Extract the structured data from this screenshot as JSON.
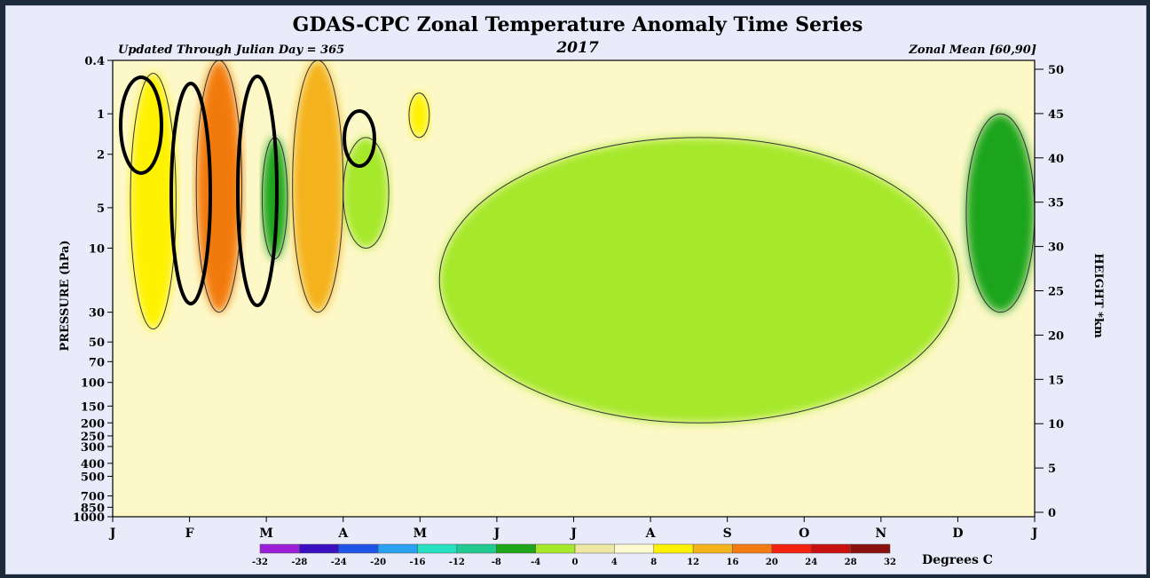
{
  "chart_data": {
    "type": "heatmap",
    "title": "GDAS-CPC Zonal Temperature Anomaly Time Series",
    "year": "2017",
    "left_note": "Updated Through Julian Day = 365",
    "right_note": "Zonal Mean [60,90]",
    "ylabel": "PRESSURE (hPa)",
    "y2label": "HEIGHT *km",
    "x_ticks": [
      "J",
      "F",
      "M",
      "A",
      "M",
      "J",
      "J",
      "A",
      "S",
      "O",
      "N",
      "D",
      "J"
    ],
    "x_day_range": [
      1,
      365
    ],
    "y_pressure_ticks": [
      "0.4",
      "1",
      "2",
      "5",
      "10",
      "30",
      "50",
      "70",
      "100",
      "150",
      "200",
      "250",
      "300",
      "400",
      "500",
      "700",
      "850",
      "1000"
    ],
    "y_pressure_range": [
      0.4,
      1000
    ],
    "y_scale": "log",
    "y_height_ticks": [
      "50",
      "45",
      "40",
      "35",
      "30",
      "25",
      "20",
      "15",
      "10",
      "5",
      "0"
    ],
    "colorbar": {
      "label": "Degrees C",
      "ticks": [
        "-32",
        "-28",
        "-24",
        "-20",
        "-16",
        "-12",
        "-8",
        "-4",
        "0",
        "4",
        "8",
        "12",
        "16",
        "20",
        "24",
        "28",
        "32"
      ],
      "colors": [
        "#9b1fd8",
        "#3a10c0",
        "#1f55e6",
        "#2aa0f0",
        "#27e0c0",
        "#22c990",
        "#1ea51a",
        "#a6e82c",
        "#ece8a4",
        "#fffbd0",
        "#fff200",
        "#f4b21b",
        "#f27a10",
        "#f2220f",
        "#c8100e",
        "#8a0f0f",
        "#a88548"
      ]
    },
    "anomaly_regions": [
      {
        "day_range": [
          8,
          26
        ],
        "pressure_range": [
          0.5,
          40
        ],
        "anomaly_c": 8
      },
      {
        "day_range": [
          34,
          52
        ],
        "pressure_range": [
          0.4,
          30
        ],
        "anomaly_c": 16
      },
      {
        "day_range": [
          60,
          70
        ],
        "pressure_range": [
          1.5,
          12
        ],
        "anomaly_c": -8
      },
      {
        "day_range": [
          72,
          92
        ],
        "pressure_range": [
          0.4,
          30
        ],
        "anomaly_c": 12
      },
      {
        "day_range": [
          92,
          110
        ],
        "pressure_range": [
          1.5,
          10
        ],
        "anomaly_c": -4
      },
      {
        "day_range": [
          118,
          126
        ],
        "pressure_range": [
          0.7,
          1.5
        ],
        "anomaly_c": 8
      },
      {
        "day_range": [
          130,
          335
        ],
        "pressure_range": [
          1.5,
          200
        ],
        "anomaly_c": -4
      },
      {
        "day_range": [
          338,
          365
        ],
        "pressure_range": [
          1,
          30
        ],
        "anomaly_c": -8
      }
    ]
  }
}
